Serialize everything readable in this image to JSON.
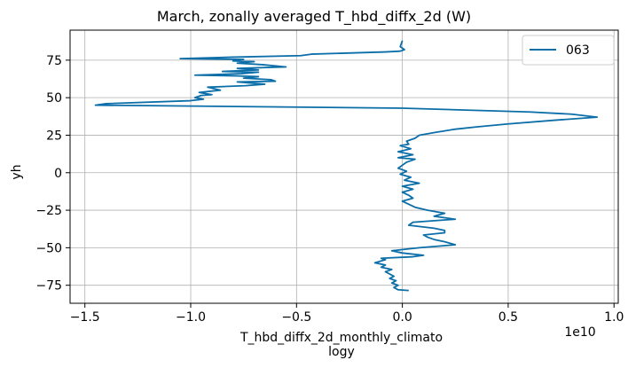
{
  "chart_data": {
    "type": "line",
    "title": "March, zonally averaged T_hbd_diffx_2d (W)",
    "xlabel_line1": "T_hbd_diffx_2d_monthly_climato",
    "xlabel_line2": "logy",
    "ylabel": "yh",
    "offset_label": "1e10",
    "xlim": [
      -1.57,
      1.02
    ],
    "ylim": [
      -87,
      95
    ],
    "xscale": 10000000000.0,
    "x_ticks": [
      -1.5,
      -1.0,
      -0.5,
      0.0,
      0.5,
      1.0
    ],
    "x_tick_labels": [
      "−1.5",
      "−1.0",
      "−0.5",
      "0.0",
      "0.5",
      "1.0"
    ],
    "y_ticks": [
      75,
      50,
      25,
      0,
      -25,
      -50,
      -75
    ],
    "y_tick_labels": [
      "75",
      "50",
      "25",
      "0",
      "−25",
      "−50",
      "−75"
    ],
    "grid": true,
    "legend_position": "top-right",
    "series": [
      {
        "name": "063",
        "color": "#0b6ea8",
        "points": [
          [
            0.0,
            88
          ],
          [
            -0.01,
            84
          ],
          [
            0.01,
            82
          ],
          [
            -0.01,
            81
          ],
          [
            -0.08,
            80.5
          ],
          [
            -0.43,
            79
          ],
          [
            -0.48,
            78
          ],
          [
            -0.8,
            77
          ],
          [
            -1.05,
            76
          ],
          [
            -0.75,
            75.5
          ],
          [
            -0.8,
            74.5
          ],
          [
            -0.7,
            74
          ],
          [
            -0.78,
            73
          ],
          [
            -0.66,
            72
          ],
          [
            -0.55,
            70.5
          ],
          [
            -0.78,
            69.5
          ],
          [
            -0.68,
            68.5
          ],
          [
            -0.85,
            67.5
          ],
          [
            -0.68,
            67
          ],
          [
            -0.76,
            66
          ],
          [
            -0.98,
            65
          ],
          [
            -0.78,
            64.5
          ],
          [
            -0.68,
            64
          ],
          [
            -0.75,
            63
          ],
          [
            -0.62,
            62
          ],
          [
            -0.6,
            61
          ],
          [
            -0.78,
            60.5
          ],
          [
            -0.65,
            59
          ],
          [
            -0.74,
            58
          ],
          [
            -0.92,
            57
          ],
          [
            -0.86,
            55
          ],
          [
            -0.96,
            53.5
          ],
          [
            -0.9,
            52
          ],
          [
            -0.95,
            51.5
          ],
          [
            -0.98,
            50
          ],
          [
            -0.94,
            49
          ],
          [
            -1.0,
            48
          ],
          [
            -1.4,
            46
          ],
          [
            -1.45,
            45
          ],
          [
            -1.2,
            44.7
          ],
          [
            0.0,
            43
          ],
          [
            0.6,
            40.5
          ],
          [
            0.8,
            39
          ],
          [
            0.92,
            37
          ],
          [
            0.72,
            35
          ],
          [
            0.5,
            32.5
          ],
          [
            0.35,
            30.5
          ],
          [
            0.25,
            29
          ],
          [
            0.16,
            27
          ],
          [
            0.08,
            25
          ],
          [
            0.06,
            23
          ],
          [
            0.02,
            21
          ],
          [
            0.03,
            19
          ],
          [
            -0.01,
            18
          ],
          [
            0.04,
            16
          ],
          [
            -0.02,
            14
          ],
          [
            0.05,
            12
          ],
          [
            -0.02,
            10
          ],
          [
            0.06,
            9
          ],
          [
            0.02,
            7
          ],
          [
            0.0,
            5
          ],
          [
            -0.02,
            3
          ],
          [
            0.02,
            1
          ],
          [
            -0.01,
            -1
          ],
          [
            0.04,
            -3
          ],
          [
            0.01,
            -5
          ],
          [
            0.08,
            -7
          ],
          [
            0.0,
            -9
          ],
          [
            0.05,
            -11
          ],
          [
            0.0,
            -13
          ],
          [
            0.03,
            -15
          ],
          [
            0.05,
            -17
          ],
          [
            0.0,
            -19
          ],
          [
            0.03,
            -21
          ],
          [
            0.06,
            -23
          ],
          [
            0.12,
            -25
          ],
          [
            0.2,
            -27
          ],
          [
            0.15,
            -29
          ],
          [
            0.25,
            -31
          ],
          [
            0.05,
            -33
          ],
          [
            0.03,
            -35
          ],
          [
            0.15,
            -37
          ],
          [
            0.2,
            -38.5
          ],
          [
            0.2,
            -40
          ],
          [
            0.1,
            -41.5
          ],
          [
            0.12,
            -43
          ],
          [
            0.15,
            -44.5
          ],
          [
            0.2,
            -46
          ],
          [
            0.25,
            -48
          ],
          [
            0.08,
            -50
          ],
          [
            -0.05,
            -52
          ],
          [
            0.0,
            -53.5
          ],
          [
            0.1,
            -55
          ],
          [
            0.05,
            -56
          ],
          [
            -0.1,
            -57
          ],
          [
            -0.08,
            -58
          ],
          [
            -0.13,
            -60
          ],
          [
            -0.08,
            -61.5
          ],
          [
            -0.1,
            -63
          ],
          [
            -0.05,
            -64.5
          ],
          [
            -0.08,
            -66
          ],
          [
            -0.06,
            -67.5
          ],
          [
            -0.04,
            -69
          ],
          [
            -0.06,
            -70.5
          ],
          [
            -0.03,
            -72
          ],
          [
            -0.05,
            -73.5
          ],
          [
            -0.02,
            -75
          ],
          [
            -0.04,
            -76.5
          ],
          [
            -0.02,
            -78
          ],
          [
            0.03,
            -78.5
          ]
        ]
      }
    ]
  }
}
